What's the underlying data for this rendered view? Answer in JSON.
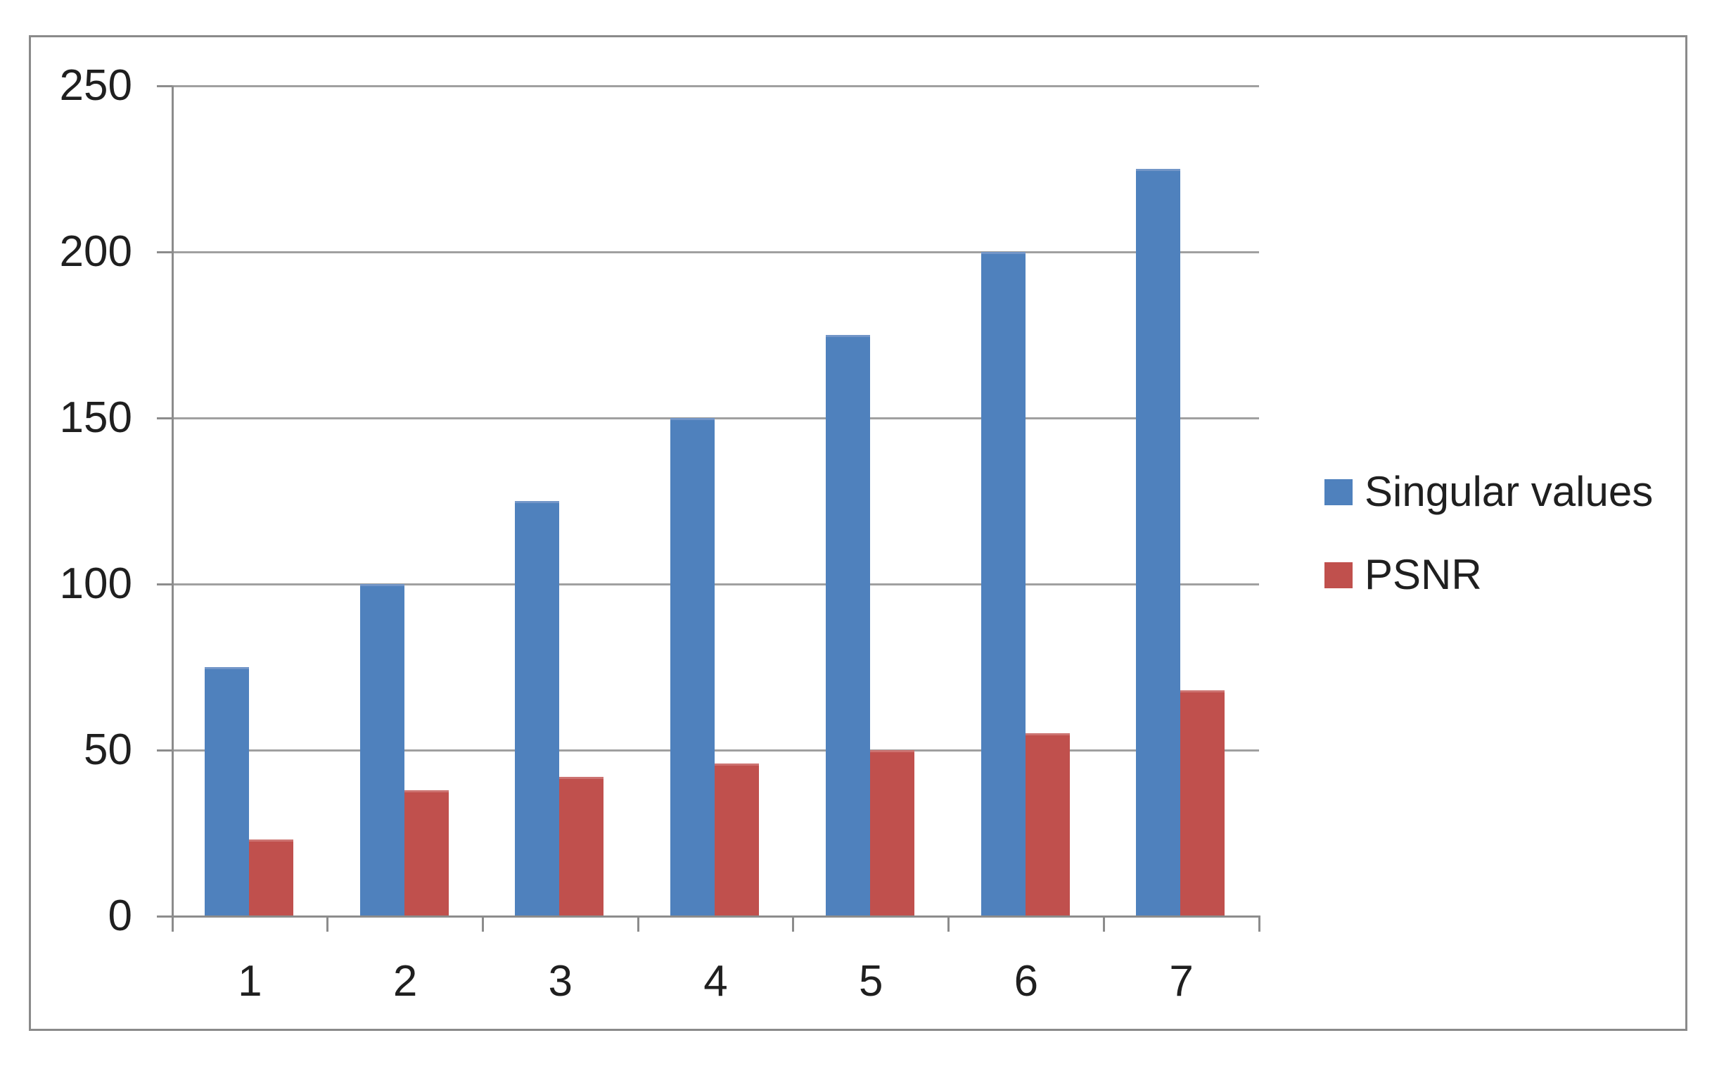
{
  "chart_data": {
    "type": "bar",
    "title": "",
    "xlabel": "",
    "ylabel": "",
    "categories": [
      "1",
      "2",
      "3",
      "4",
      "5",
      "6",
      "7"
    ],
    "series": [
      {
        "name": "Singular values",
        "color": "#4F81BD",
        "edge_color": "#7396C8",
        "values": [
          75,
          100,
          125,
          150,
          175,
          200,
          225
        ]
      },
      {
        "name": "PSNR",
        "color": "#C0504D",
        "edge_color": "#CD7371",
        "values": [
          23,
          38,
          42,
          46,
          50,
          55,
          68
        ]
      }
    ],
    "ylim": [
      0,
      250
    ],
    "ytick_interval": 50,
    "yticks": [
      "0",
      "50",
      "100",
      "150",
      "200",
      "250"
    ],
    "grid": true,
    "legend_position": "right-middle"
  },
  "colors": {
    "gridline": "#A0A0A0",
    "axis": "#8C8C8C",
    "frame_border": "#8A8A8A",
    "text": "#1F1F1F",
    "background": "#FFFFFF"
  }
}
